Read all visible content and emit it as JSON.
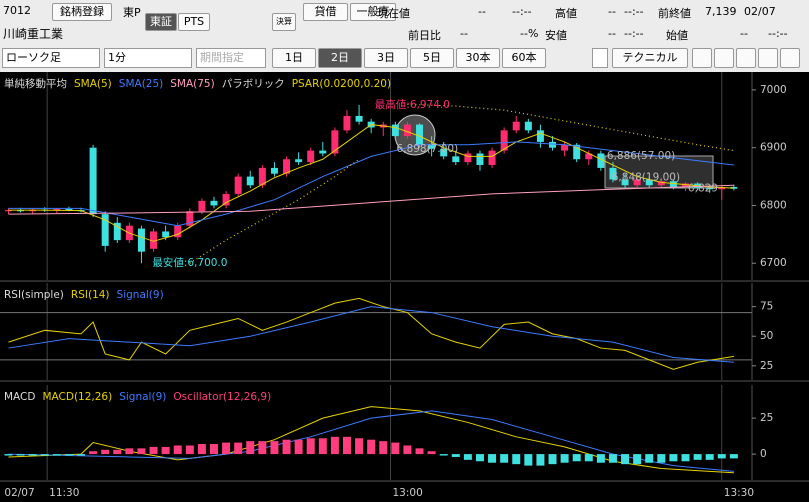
{
  "header": {
    "code": "7012",
    "register": "銘柄登録",
    "market": "東P",
    "tabs": [
      "東証",
      "PTS"
    ],
    "kessan": "決算",
    "taishaku": "貸借",
    "ippan": "一般売",
    "name": "川崎重工業",
    "quotes": [
      {
        "label": "現在値",
        "value": "--",
        "time": "--:--"
      },
      {
        "label": "高値",
        "value": "--",
        "time": "--:--"
      },
      {
        "label": "前終値",
        "value": "7,139",
        "time": "02/07"
      },
      {
        "label": "前日比",
        "value": "--",
        "time": "--%"
      },
      {
        "label": "安値",
        "value": "--",
        "time": "--:--"
      },
      {
        "label": "始値",
        "value": "--",
        "time": "--:--"
      }
    ]
  },
  "toolbar": {
    "chart_kind": "ローソク足",
    "interval": "1分",
    "period": "期間指定",
    "ranges": [
      "1日",
      "2日",
      "3日",
      "5日",
      "30本",
      "60本"
    ],
    "selected_range": "2日",
    "technical": "テクニカル"
  },
  "overlay_text": "6,90",
  "chart_data": [
    {
      "type": "candlestick",
      "legend_title": "単純移動平均",
      "xlim": [
        -0.7,
        61.5
      ],
      "ylim": [
        6671,
        7031
      ],
      "yticks": [
        6700,
        6800,
        6900,
        7000
      ],
      "up_color": "#ff2d6f",
      "down_color": "#3ee0e0",
      "open": [
        6790,
        6792,
        6790,
        6793,
        6791,
        6794,
        6792,
        6900,
        6785,
        6770,
        6740,
        6760,
        6725,
        6755,
        6745,
        6765,
        6790,
        6808,
        6800,
        6820,
        6850,
        6835,
        6865,
        6855,
        6880,
        6875,
        6895,
        6890,
        6930,
        6955,
        6945,
        6935,
        6940,
        6920,
        6940,
        6905,
        6898,
        6885,
        6875,
        6890,
        6870,
        6895,
        6930,
        6945,
        6930,
        6910,
        6895,
        6905,
        6880,
        6890,
        6865,
        6845,
        6835,
        6845,
        6835,
        6842,
        6832,
        6838,
        6830,
        6828,
        6832
      ],
      "high": [
        6795,
        6796,
        6794,
        6797,
        6795,
        6798,
        6796,
        6905,
        6790,
        6780,
        6770,
        6765,
        6760,
        6765,
        6770,
        6795,
        6812,
        6815,
        6825,
        6855,
        6860,
        6870,
        6875,
        6885,
        6892,
        6900,
        6910,
        6935,
        6965,
        6974,
        6950,
        6945,
        6945,
        6945,
        6942,
        6920,
        6910,
        6895,
        6895,
        6895,
        6900,
        6935,
        6955,
        6950,
        6940,
        6920,
        6910,
        6908,
        6895,
        6895,
        6875,
        6855,
        6850,
        6850,
        6848,
        6845,
        6840,
        6840,
        6836,
        6834,
        6836
      ],
      "low": [
        6785,
        6788,
        6786,
        6789,
        6787,
        6790,
        6788,
        6780,
        6720,
        6735,
        6735,
        6700,
        6720,
        6740,
        6740,
        6760,
        6785,
        6795,
        6795,
        6815,
        6830,
        6830,
        6850,
        6850,
        6870,
        6870,
        6885,
        6885,
        6925,
        6940,
        6925,
        6920,
        6915,
        6915,
        6900,
        6885,
        6880,
        6870,
        6870,
        6860,
        6865,
        6890,
        6925,
        6925,
        6900,
        6895,
        6885,
        6875,
        6870,
        6860,
        6840,
        6830,
        6830,
        6830,
        6830,
        6828,
        6825,
        6826,
        6822,
        6810,
        6826
      ],
      "close": [
        6792,
        6790,
        6793,
        6791,
        6794,
        6792,
        6790,
        6785,
        6730,
        6740,
        6765,
        6720,
        6755,
        6745,
        6765,
        6790,
        6808,
        6800,
        6820,
        6850,
        6835,
        6865,
        6855,
        6880,
        6875,
        6895,
        6890,
        6930,
        6955,
        6945,
        6935,
        6940,
        6920,
        6940,
        6905,
        6898,
        6885,
        6875,
        6890,
        6870,
        6895,
        6930,
        6945,
        6930,
        6910,
        6900,
        6905,
        6880,
        6890,
        6865,
        6845,
        6835,
        6845,
        6835,
        6842,
        6832,
        6838,
        6830,
        6828,
        6832,
        6829
      ],
      "series": [
        {
          "name": "SMA(5)",
          "color": "#e6d200",
          "x": [
            0,
            3,
            6,
            8,
            10,
            12,
            14,
            16,
            18,
            20,
            22,
            24,
            26,
            28,
            30,
            32,
            34,
            36,
            38,
            40,
            42,
            44,
            46,
            48,
            50,
            52,
            54,
            56,
            58,
            60
          ],
          "values": [
            6792,
            6792,
            6791,
            6775,
            6752,
            6738,
            6750,
            6775,
            6805,
            6825,
            6848,
            6865,
            6880,
            6910,
            6940,
            6935,
            6920,
            6900,
            6885,
            6885,
            6910,
            6925,
            6910,
            6890,
            6870,
            6850,
            6840,
            6836,
            6832,
            6830
          ]
        },
        {
          "name": "SMA(25)",
          "color": "#3d7bff",
          "x": [
            0,
            6,
            10,
            14,
            18,
            22,
            26,
            30,
            34,
            38,
            42,
            46,
            50,
            54,
            58,
            60
          ],
          "values": [
            6795,
            6795,
            6780,
            6765,
            6785,
            6810,
            6850,
            6885,
            6905,
            6905,
            6910,
            6905,
            6895,
            6885,
            6875,
            6870
          ]
        },
        {
          "name": "SMA(75)",
          "color": "#ff9fc0",
          "x": [
            0,
            10,
            20,
            30,
            40,
            50,
            60
          ],
          "values": [
            6785,
            6787,
            6790,
            6805,
            6820,
            6828,
            6835
          ]
        },
        {
          "name": "PSAR(0.0200,0.20)",
          "group_title": "パラボリック",
          "color": "#e6d200",
          "dotted": true,
          "x": [
            15,
            18,
            21,
            24,
            27,
            29,
            31,
            33,
            37,
            41,
            45,
            49,
            53,
            57,
            60
          ],
          "values": [
            6700,
            6740,
            6775,
            6810,
            6850,
            6880,
            null,
            6975,
            6972,
            6965,
            6950,
            6935,
            6920,
            6905,
            6895
          ]
        }
      ],
      "annotations": [
        {
          "text": "最高値:6,974.0",
          "x": 30.3,
          "value": 6974,
          "color": "#ff2d6f"
        },
        {
          "text": "最安値:6,700.0",
          "x": 11.9,
          "value": 6700,
          "color": "#3ee0e0"
        },
        {
          "text": "6,898(7.00)",
          "x": 32.1,
          "value": 6898,
          "color": "#bbbbbb"
        },
        {
          "text": "6,886(57.00)",
          "x": 49.5,
          "value": 6886,
          "color": "#bbbbbb"
        },
        {
          "text": "6,848(19.00)",
          "x": 49.9,
          "value": 6848,
          "color": "#bbbbbb"
        },
        {
          "text": "6,829",
          "x": 56.2,
          "value": 6829,
          "color": "#bbbbbb"
        }
      ]
    },
    {
      "type": "line",
      "title": "RSI(simple)",
      "xlim": [
        -0.7,
        61.5
      ],
      "ylim": [
        13,
        95
      ],
      "yticks": [
        25,
        50,
        75
      ],
      "hlines": [
        70,
        30
      ],
      "series": [
        {
          "name": "RSI(14)",
          "color": "#e6d200",
          "x": [
            0,
            3,
            6,
            7,
            8,
            10,
            11,
            13,
            15,
            17,
            19,
            21,
            23,
            25,
            27,
            29,
            31,
            33,
            35,
            37,
            39,
            41,
            43,
            45,
            47,
            49,
            51,
            53,
            55,
            57,
            60
          ],
          "values": [
            45,
            55,
            52,
            62,
            35,
            30,
            45,
            35,
            55,
            60,
            65,
            55,
            62,
            70,
            78,
            82,
            75,
            70,
            52,
            45,
            40,
            60,
            62,
            52,
            48,
            40,
            38,
            30,
            22,
            28,
            33
          ]
        },
        {
          "name": "Signal(9)",
          "color": "#3d7bff",
          "x": [
            0,
            5,
            10,
            15,
            20,
            25,
            30,
            35,
            40,
            45,
            50,
            55,
            60
          ],
          "values": [
            40,
            48,
            45,
            42,
            50,
            62,
            75,
            70,
            58,
            50,
            45,
            32,
            28
          ]
        }
      ]
    },
    {
      "type": "macd",
      "title": "MACD",
      "xlim": [
        -0.7,
        61.5
      ],
      "ylim": [
        -18,
        48
      ],
      "yticks": [
        0,
        25
      ],
      "xticks": [
        {
          "value": -0.5,
          "label": "02/07"
        },
        {
          "value": 3.2,
          "label": "11:30"
        },
        {
          "value": 31.6,
          "label": "13:00"
        },
        {
          "value": 59,
          "label": "13:30"
        }
      ],
      "series": [
        {
          "name": "MACD(12,26)",
          "color": "#e6d200",
          "x": [
            0,
            6,
            7,
            10,
            14,
            18,
            22,
            26,
            30,
            34,
            38,
            42,
            46,
            50,
            54,
            58,
            60
          ],
          "values": [
            -2,
            0,
            8,
            2,
            -4,
            0,
            10,
            25,
            33,
            30,
            22,
            12,
            5,
            -5,
            -10,
            -12,
            -13
          ]
        },
        {
          "name": "Signal(9)",
          "color": "#3d7bff",
          "x": [
            0,
            10,
            15,
            20,
            25,
            30,
            35,
            40,
            45,
            50,
            55,
            60
          ],
          "values": [
            0,
            -2,
            -3,
            2,
            12,
            25,
            30,
            24,
            12,
            0,
            -8,
            -12
          ]
        },
        {
          "name": "Oscillator(12,26,9)",
          "color": "#ff3d7f",
          "neg_color": "#3ee0e0",
          "bars": true,
          "values": [
            -1,
            -1,
            -1,
            -1,
            -1,
            -1,
            -1,
            2,
            3,
            3,
            4,
            4,
            5,
            5,
            6,
            6,
            7,
            7,
            8,
            8,
            9,
            9,
            9,
            10,
            10,
            11,
            11,
            12,
            12,
            11,
            10,
            9,
            8,
            6,
            4,
            2,
            -1,
            -2,
            -4,
            -5,
            -6,
            -6,
            -7,
            -8,
            -8,
            -7,
            -6,
            -5,
            -5,
            -6,
            -6,
            -7,
            -7,
            -6,
            -6,
            -5,
            -5,
            -4,
            -4,
            -3,
            -3
          ]
        }
      ]
    }
  ]
}
